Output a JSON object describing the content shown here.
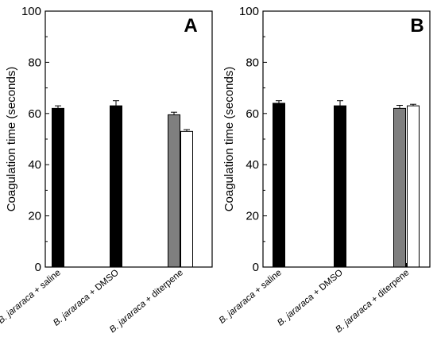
{
  "chart_data": [
    {
      "type": "bar",
      "panel_label": "A",
      "ylabel": "Coagulation time (seconds)",
      "ylim": [
        0,
        100
      ],
      "yticks": [
        0,
        20,
        40,
        60,
        80,
        100
      ],
      "grid": false,
      "categories": [
        {
          "species": "B. jararaca",
          "treatment": " + saline"
        },
        {
          "species": "B. jararaca",
          "treatment": " + DMSO"
        },
        {
          "species": "B. jararaca",
          "treatment": " + diterpene"
        }
      ],
      "bars": [
        {
          "category": 0,
          "fill": "#000000",
          "value": 62,
          "error": 1
        },
        {
          "category": 1,
          "fill": "#000000",
          "value": 63,
          "error": 2
        },
        {
          "category": 2,
          "fill": "#7f7f7f",
          "value": 59.5,
          "error": 1
        },
        {
          "category": 2,
          "fill": "#ffffff",
          "value": 53,
          "error": 0.7
        }
      ]
    },
    {
      "type": "bar",
      "panel_label": "B",
      "ylabel": "Coagulation time (seconds)",
      "ylim": [
        0,
        100
      ],
      "yticks": [
        0,
        20,
        40,
        60,
        80,
        100
      ],
      "grid": false,
      "categories": [
        {
          "species": "B. jararaca",
          "treatment": " + saline"
        },
        {
          "species": "B. jararaca",
          "treatment": " + DMSO"
        },
        {
          "species": "B. jararaca",
          "treatment": " + diterpene"
        }
      ],
      "bars": [
        {
          "category": 0,
          "fill": "#000000",
          "value": 64,
          "error": 1
        },
        {
          "category": 1,
          "fill": "#000000",
          "value": 63,
          "error": 2
        },
        {
          "category": 2,
          "fill": "#7f7f7f",
          "value": 62,
          "error": 1.2
        },
        {
          "category": 2,
          "fill": "#ffffff",
          "value": 63,
          "error": 0.6
        }
      ]
    }
  ]
}
